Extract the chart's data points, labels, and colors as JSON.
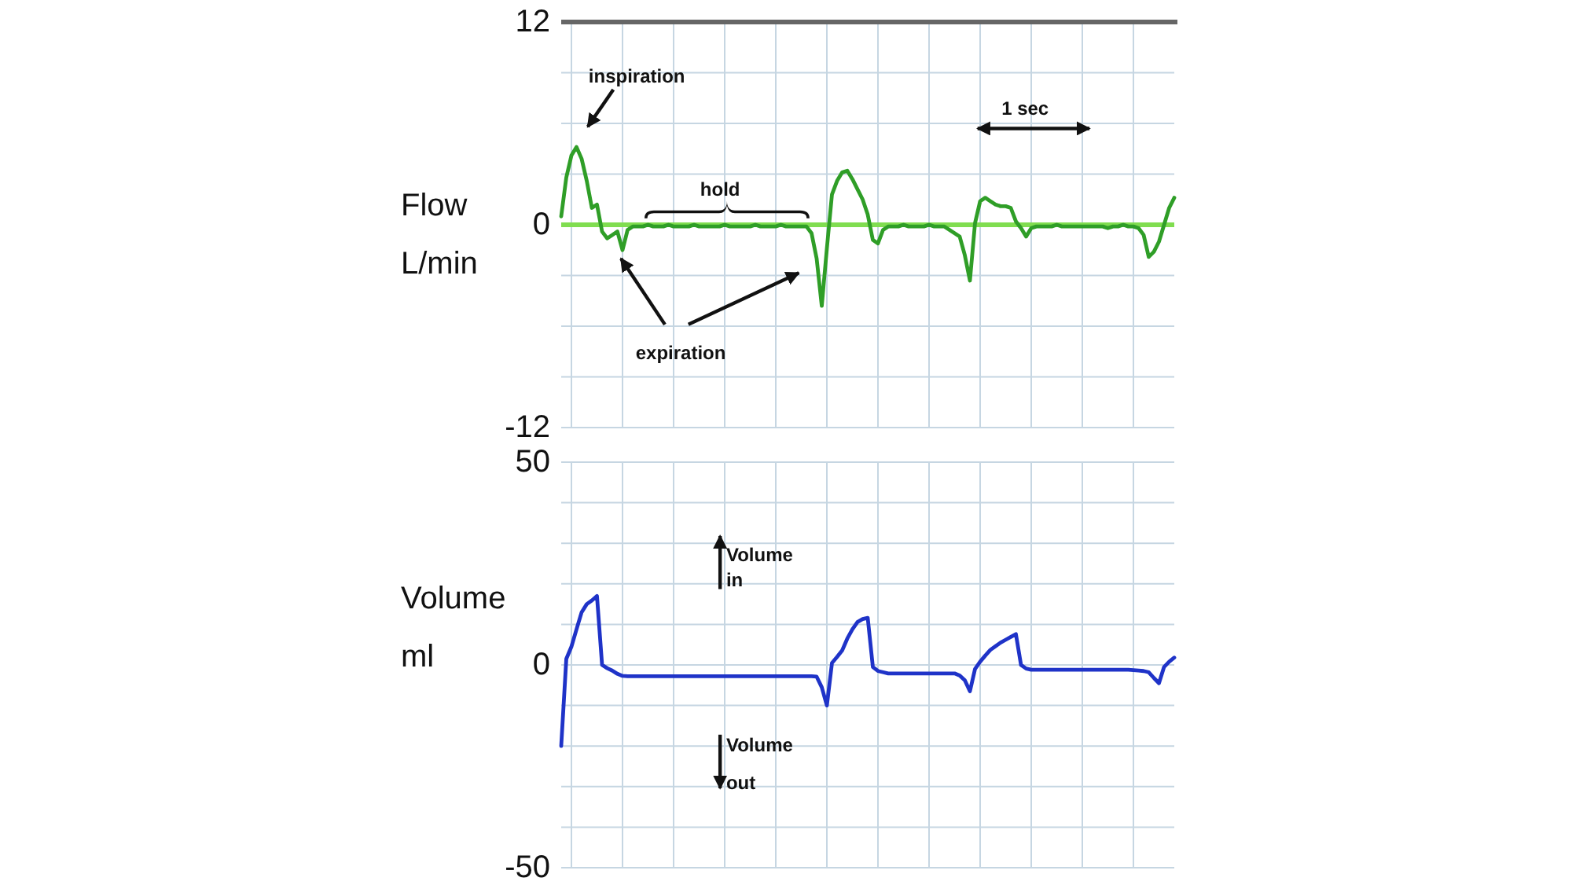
{
  "chart_data": [
    {
      "type": "line",
      "ylabel": "Flow\nL/min",
      "categories": [
        null,
        null,
        null,
        null,
        null,
        null,
        null,
        null,
        null,
        null,
        null,
        null,
        null,
        null,
        null,
        null,
        null,
        null,
        null,
        null,
        null,
        null,
        null,
        null,
        null,
        null,
        null,
        null,
        null,
        null,
        null,
        null,
        null,
        null,
        null,
        null,
        null,
        null,
        null,
        null,
        null,
        null,
        null,
        null,
        null,
        null,
        null,
        null,
        null,
        null,
        null,
        null,
        null,
        null,
        null,
        null,
        null,
        null,
        null,
        null,
        null,
        null,
        null,
        null,
        null,
        null,
        null,
        null,
        null,
        null,
        null,
        null,
        null,
        null,
        null,
        null,
        null,
        null,
        null,
        null,
        null,
        null,
        null,
        null,
        null,
        null,
        null,
        null,
        null,
        null,
        null,
        null,
        null,
        null,
        null,
        null,
        null,
        null,
        null,
        null,
        null,
        null,
        null,
        null,
        null,
        null,
        null,
        null,
        null,
        null,
        null,
        null,
        null,
        null,
        null,
        null,
        null,
        null,
        null,
        null,
        null
      ],
      "series": [
        {
          "color": "#2f9e27",
          "values": [
            0.5,
            2.8,
            4.1,
            4.6,
            3.9,
            2.6,
            1.0,
            1.2,
            -0.4,
            -0.8,
            -0.6,
            -0.4,
            -1.5,
            -0.3,
            -0.1,
            -0.1,
            -0.1,
            0,
            -0.1,
            -0.1,
            -0.1,
            0,
            -0.1,
            -0.1,
            -0.1,
            -0.1,
            0,
            -0.1,
            -0.1,
            -0.1,
            -0.1,
            -0.1,
            0,
            -0.1,
            -0.1,
            -0.1,
            -0.1,
            -0.1,
            0,
            -0.1,
            -0.1,
            -0.1,
            -0.1,
            0,
            -0.1,
            -0.1,
            -0.1,
            -0.1,
            -0.1,
            -0.5,
            -2.0,
            -4.8,
            -1.4,
            1.8,
            2.6,
            3.1,
            3.2,
            2.7,
            2.1,
            1.5,
            0.6,
            -0.9,
            -1.1,
            -0.3,
            -0.1,
            -0.1,
            -0.1,
            0,
            -0.1,
            -0.1,
            -0.1,
            -0.1,
            0,
            -0.1,
            -0.1,
            -0.1,
            -0.3,
            -0.5,
            -0.7,
            -1.8,
            -3.3,
            0.1,
            1.4,
            1.6,
            1.4,
            1.2,
            1.1,
            1.1,
            1.0,
            0.2,
            -0.2,
            -0.7,
            -0.2,
            -0.1,
            -0.1,
            -0.1,
            -0.1,
            0,
            -0.1,
            -0.1,
            -0.1,
            -0.1,
            -0.1,
            -0.1,
            -0.1,
            -0.1,
            -0.1,
            -0.2,
            -0.1,
            -0.1,
            0,
            -0.1,
            -0.1,
            -0.2,
            -0.6,
            -1.9,
            -1.6,
            -1.0,
            0.0,
            1.0,
            1.6
          ]
        }
      ],
      "ylim": [
        -12,
        12
      ],
      "yticks": [
        12,
        {
          "value": 9,
          "label": null
        },
        {
          "value": 6,
          "label": null
        },
        {
          "value": 3,
          "label": null
        },
        0,
        {
          "value": -3,
          "label": null
        },
        {
          "value": -6,
          "label": null
        },
        {
          "value": -9,
          "label": null
        },
        -12
      ],
      "grid": true,
      "ref_lines": [
        {
          "axis": "y",
          "value": 0,
          "color": "#80dd50"
        }
      ],
      "annotations": [
        "inspiration",
        "hold",
        "expiration",
        "1 sec"
      ]
    },
    {
      "type": "line",
      "ylabel": "Volume\nml",
      "categories": [
        null,
        null,
        null,
        null,
        null,
        null,
        null,
        null,
        null,
        null,
        null,
        null,
        null,
        null,
        null,
        null,
        null,
        null,
        null,
        null,
        null,
        null,
        null,
        null,
        null,
        null,
        null,
        null,
        null,
        null,
        null,
        null,
        null,
        null,
        null,
        null,
        null,
        null,
        null,
        null,
        null,
        null,
        null,
        null,
        null,
        null,
        null,
        null,
        null,
        null,
        null,
        null,
        null,
        null,
        null,
        null,
        null,
        null,
        null,
        null,
        null,
        null,
        null,
        null,
        null,
        null,
        null,
        null,
        null,
        null,
        null,
        null,
        null,
        null,
        null,
        null,
        null,
        null,
        null,
        null,
        null,
        null,
        null,
        null,
        null,
        null,
        null,
        null,
        null,
        null,
        null,
        null,
        null,
        null,
        null,
        null,
        null,
        null,
        null,
        null,
        null,
        null,
        null,
        null,
        null,
        null,
        null,
        null,
        null,
        null,
        null,
        null,
        null,
        null,
        null,
        null,
        null,
        null,
        null,
        null,
        null
      ],
      "series": [
        {
          "color": "#1f33c8",
          "values": [
            -20,
            1.5,
            4.5,
            8.8,
            13,
            15,
            15.9,
            17,
            0,
            -0.8,
            -1.4,
            -2.2,
            -2.7,
            -2.8,
            -2.8,
            -2.8,
            -2.8,
            -2.8,
            -2.8,
            -2.8,
            -2.8,
            -2.8,
            -2.8,
            -2.8,
            -2.8,
            -2.8,
            -2.8,
            -2.8,
            -2.8,
            -2.8,
            -2.8,
            -2.8,
            -2.8,
            -2.8,
            -2.8,
            -2.8,
            -2.8,
            -2.8,
            -2.8,
            -2.8,
            -2.8,
            -2.8,
            -2.8,
            -2.8,
            -2.8,
            -2.8,
            -2.8,
            -2.8,
            -2.8,
            -2.8,
            -2.9,
            -5.5,
            -10,
            0.5,
            2,
            3.6,
            6.5,
            8.8,
            10.6,
            11.3,
            11.6,
            -0.5,
            -1.5,
            -1.8,
            -2.1,
            -2.1,
            -2.1,
            -2.1,
            -2.1,
            -2.1,
            -2.1,
            -2.1,
            -2.1,
            -2.1,
            -2.1,
            -2.1,
            -2.1,
            -2.1,
            -2.6,
            -3.8,
            -6.5,
            -1,
            0.8,
            2.3,
            3.7,
            4.6,
            5.5,
            6.2,
            6.9,
            7.6,
            0,
            -0.9,
            -1.2,
            -1.2,
            -1.2,
            -1.2,
            -1.2,
            -1.2,
            -1.2,
            -1.2,
            -1.2,
            -1.2,
            -1.2,
            -1.2,
            -1.2,
            -1.2,
            -1.2,
            -1.2,
            -1.2,
            -1.2,
            -1.2,
            -1.2,
            -1.3,
            -1.4,
            -1.5,
            -1.8,
            -3.2,
            -4.5,
            -0.5,
            0.8,
            1.8
          ]
        }
      ],
      "ylim": [
        -50,
        50
      ],
      "yticks": [
        50,
        {
          "value": 40,
          "label": null
        },
        {
          "value": 30,
          "label": null
        },
        {
          "value": 20,
          "label": null
        },
        {
          "value": 10,
          "label": null
        },
        0,
        {
          "value": -10,
          "label": null
        },
        {
          "value": -20,
          "label": null
        },
        {
          "value": -30,
          "label": null
        },
        {
          "value": -40,
          "label": null
        },
        -50
      ],
      "grid": true,
      "annotations": [
        "Volume\nin",
        "Volume\nout"
      ]
    }
  ]
}
